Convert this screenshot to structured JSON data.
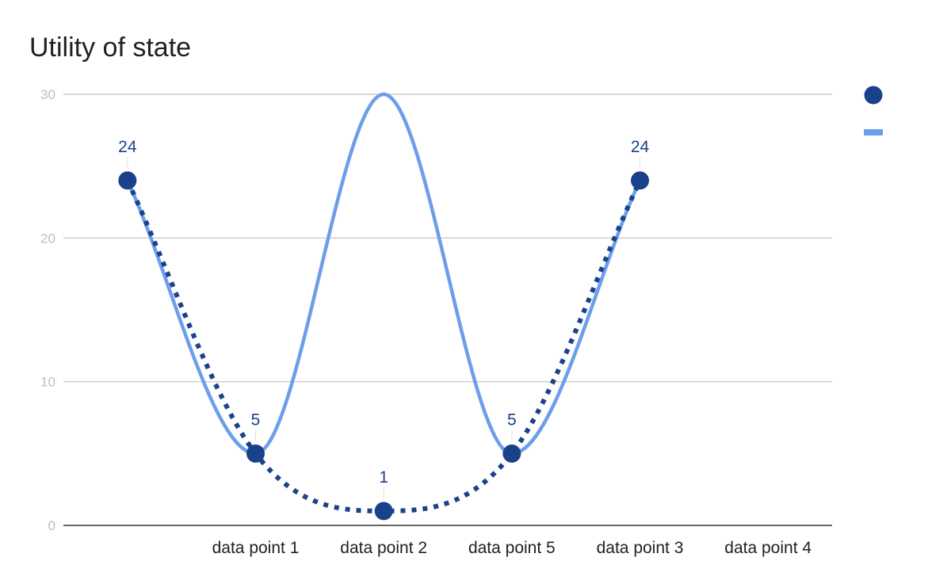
{
  "chart_data": {
    "type": "line",
    "title": "Utility of state",
    "xlabel": "",
    "ylabel": "",
    "ylim": [
      0,
      30
    ],
    "yticks": [
      0,
      10,
      20,
      30
    ],
    "categories": [
      "",
      "data point 1",
      "data point 2",
      "data point 5",
      "data point 3",
      "data point 4"
    ],
    "grid": true,
    "legend": "right",
    "series": [
      {
        "style": "dotted-with-markers",
        "color": "#1a428a",
        "x": [
          "",
          "data point 1",
          "data point 2",
          "data point 5",
          "data point 3"
        ],
        "values": [
          24,
          5,
          1,
          5,
          24
        ],
        "data_labels": [
          "24",
          "5",
          "1",
          "5",
          "24"
        ]
      },
      {
        "style": "smooth-line",
        "color": "#6d9eeb",
        "x": [
          "",
          "data point 1",
          "data point 2",
          "data point 5",
          "data point 3"
        ],
        "values": [
          24,
          5,
          30,
          5,
          24
        ]
      }
    ]
  }
}
